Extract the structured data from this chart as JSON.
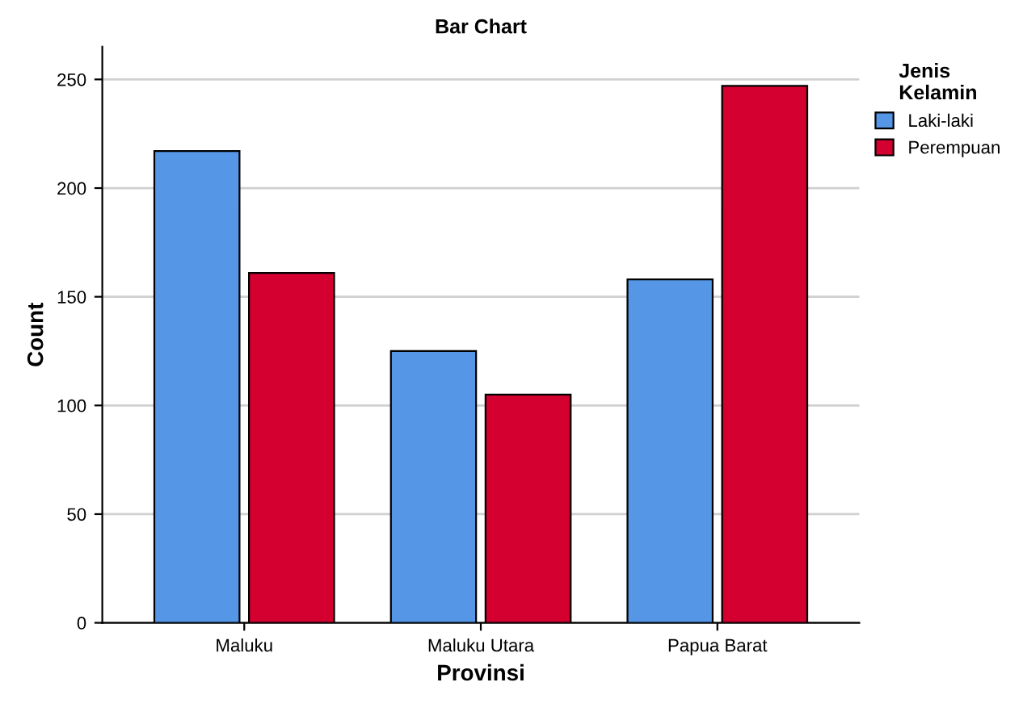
{
  "chart_data": {
    "type": "bar",
    "title": "Bar Chart",
    "xlabel": "Provinsi",
    "ylabel": "Count",
    "legend_title": "Jenis\nKelamin",
    "categories": [
      "Maluku",
      "Maluku Utara",
      "Papua Barat"
    ],
    "series": [
      {
        "name": "Laki-laki",
        "color": "#5596e6",
        "values": [
          217,
          125,
          158
        ]
      },
      {
        "name": "Perempuan",
        "color": "#d30030",
        "values": [
          161,
          105,
          247
        ]
      }
    ],
    "ylim": [
      0,
      265
    ],
    "yticks": [
      0,
      50,
      100,
      150,
      200,
      250
    ],
    "grid": "y",
    "legend": "top right"
  }
}
